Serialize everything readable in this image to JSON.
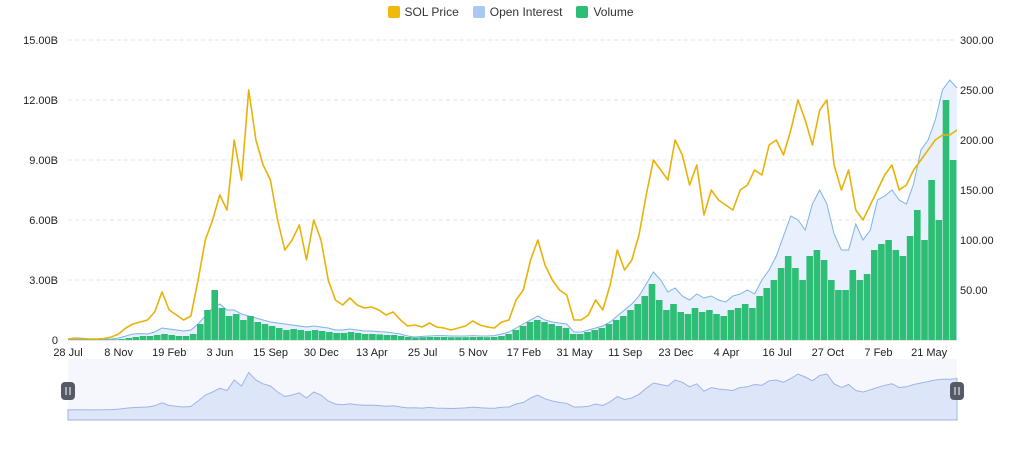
{
  "legend": [
    {
      "label": "SOL Price",
      "color": "#f0b90b"
    },
    {
      "label": "Open Interest",
      "color": "#8ab8ee"
    },
    {
      "label": "Volume",
      "color": "#2ebd74"
    }
  ],
  "colors": {
    "price": "#e9b209",
    "oi_line": "#7db3ea",
    "oi_fill": "#e7f0fc",
    "volume": "#2ebd74",
    "grid": "#e6e6e6",
    "navigator_fill": "#dde5f8",
    "navigator_line": "#9fb4e6",
    "handle": "#555a66"
  },
  "chart_data": {
    "type": "line",
    "x_labels": [
      "28 Jul",
      "8 Nov",
      "19 Feb",
      "3 Jun",
      "15 Sep",
      "30 Dec",
      "13 Apr",
      "25 Jul",
      "5 Nov",
      "17 Feb",
      "31 May",
      "11 Sep",
      "23 Dec",
      "4 Apr",
      "16 Jul",
      "27 Oct",
      "7 Feb",
      "21 May"
    ],
    "y_left": {
      "ticks": [
        "0",
        "3.00B",
        "6.00B",
        "9.00B",
        "12.00B",
        "15.00B"
      ],
      "range": [
        0,
        15000000000
      ]
    },
    "y_right": {
      "ticks": [
        "50.00",
        "100.00",
        "150.00",
        "200.00",
        "250.00",
        "300.00"
      ],
      "range": [
        0,
        300
      ]
    },
    "series": [
      {
        "name": "SOL Price",
        "axis": "right",
        "type": "line",
        "values": [
          1,
          2,
          1.5,
          1,
          1,
          1.5,
          3,
          6,
          12,
          16,
          18,
          20,
          28,
          48,
          30,
          25,
          20,
          24,
          60,
          100,
          120,
          145,
          130,
          200,
          160,
          250,
          200,
          175,
          160,
          120,
          90,
          100,
          115,
          80,
          120,
          100,
          60,
          40,
          35,
          42,
          35,
          32,
          33,
          30,
          25,
          28,
          20,
          14,
          15,
          13,
          17,
          13,
          12,
          10,
          12,
          14,
          19,
          15,
          13,
          12,
          18,
          20,
          40,
          50,
          80,
          100,
          75,
          60,
          50,
          45,
          20,
          20,
          25,
          40,
          30,
          55,
          90,
          70,
          80,
          105,
          145,
          180,
          170,
          160,
          200,
          185,
          155,
          175,
          125,
          150,
          140,
          135,
          130,
          150,
          155,
          170,
          165,
          195,
          200,
          185,
          210,
          240,
          220,
          195,
          230,
          240,
          175,
          150,
          170,
          130,
          120,
          135,
          150,
          165,
          175,
          150,
          155,
          170,
          180,
          190,
          200,
          205,
          205,
          210
        ]
      },
      {
        "name": "Open Interest",
        "axis": "left",
        "type": "area",
        "values": [
          0.02,
          0.03,
          0.02,
          0.02,
          0.02,
          0.03,
          0.05,
          0.1,
          0.2,
          0.3,
          0.32,
          0.3,
          0.4,
          0.6,
          0.55,
          0.5,
          0.45,
          0.5,
          0.8,
          1.2,
          1.6,
          1.8,
          1.5,
          1.5,
          1.3,
          1.2,
          1.1,
          1.0,
          0.9,
          0.85,
          0.8,
          0.75,
          0.7,
          0.65,
          0.7,
          0.65,
          0.6,
          0.5,
          0.5,
          0.55,
          0.5,
          0.45,
          0.45,
          0.42,
          0.4,
          0.35,
          0.3,
          0.2,
          0.15,
          0.18,
          0.2,
          0.22,
          0.22,
          0.2,
          0.2,
          0.2,
          0.22,
          0.2,
          0.2,
          0.22,
          0.3,
          0.4,
          0.6,
          0.8,
          1.0,
          1.2,
          1.0,
          0.9,
          0.85,
          0.8,
          0.4,
          0.4,
          0.5,
          0.6,
          0.7,
          0.9,
          1.2,
          1.5,
          1.8,
          2.2,
          2.8,
          3.4,
          3.0,
          2.4,
          2.6,
          2.2,
          2.0,
          2.3,
          2.1,
          2.2,
          2.0,
          1.9,
          2.2,
          2.3,
          2.5,
          2.3,
          3.0,
          3.5,
          4.2,
          5.2,
          6.2,
          6.0,
          5.5,
          6.8,
          7.5,
          6.8,
          5.3,
          4.5,
          4.5,
          5.8,
          5.0,
          5.5,
          7.0,
          7.2,
          7.5,
          7.0,
          6.8,
          7.8,
          9.5,
          10.0,
          11.0,
          12.5,
          13.0,
          12.6
        ]
      },
      {
        "name": "Volume",
        "axis": "left",
        "type": "bar",
        "values": [
          0.01,
          0.01,
          0.01,
          0.01,
          0.01,
          0.02,
          0.03,
          0.05,
          0.1,
          0.15,
          0.2,
          0.2,
          0.25,
          0.3,
          0.25,
          0.2,
          0.2,
          0.3,
          0.8,
          1.5,
          2.5,
          1.6,
          1.2,
          1.3,
          1.0,
          1.2,
          0.9,
          0.8,
          0.7,
          0.6,
          0.5,
          0.55,
          0.5,
          0.45,
          0.5,
          0.45,
          0.4,
          0.35,
          0.35,
          0.4,
          0.35,
          0.3,
          0.3,
          0.28,
          0.25,
          0.25,
          0.2,
          0.15,
          0.12,
          0.14,
          0.15,
          0.15,
          0.15,
          0.14,
          0.14,
          0.14,
          0.15,
          0.15,
          0.14,
          0.15,
          0.2,
          0.3,
          0.5,
          0.7,
          0.9,
          1.0,
          0.9,
          0.8,
          0.7,
          0.6,
          0.3,
          0.3,
          0.4,
          0.5,
          0.6,
          0.8,
          1.0,
          1.2,
          1.5,
          1.8,
          2.2,
          2.8,
          2.0,
          1.5,
          1.8,
          1.4,
          1.3,
          1.6,
          1.4,
          1.5,
          1.3,
          1.2,
          1.5,
          1.6,
          1.8,
          1.6,
          2.2,
          2.6,
          3.0,
          3.6,
          4.2,
          3.6,
          3.0,
          4.2,
          4.5,
          4.0,
          3.0,
          2.5,
          2.5,
          3.5,
          3.0,
          3.3,
          4.5,
          4.8,
          5.0,
          4.5,
          4.2,
          5.2,
          6.5,
          5.0,
          8.0,
          6.0,
          12.0,
          9.0
        ]
      }
    ],
    "navigator": {
      "handles": [
        "left",
        "right"
      ]
    }
  }
}
